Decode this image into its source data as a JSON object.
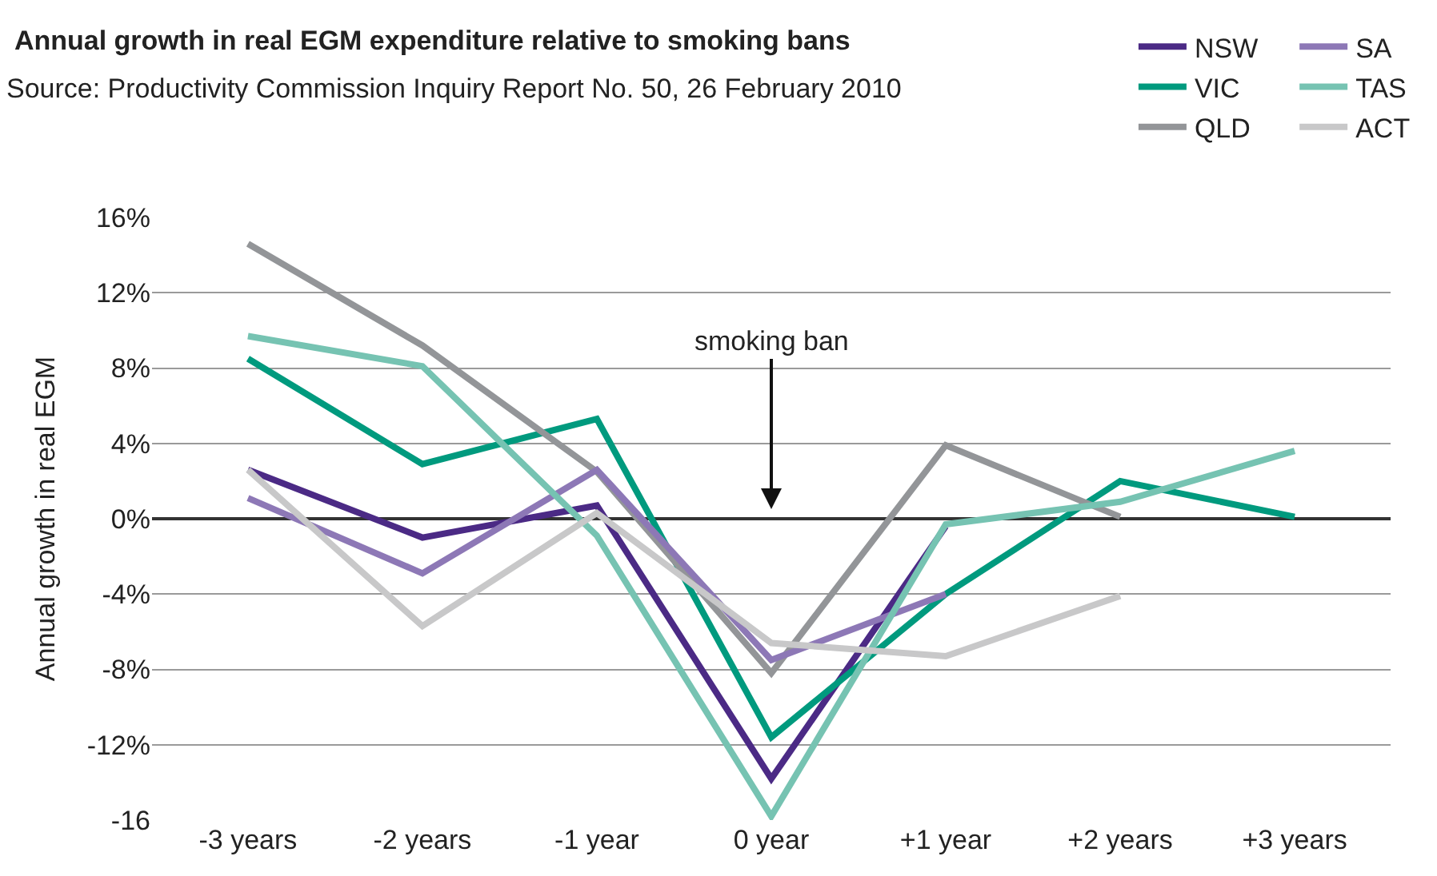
{
  "chart_data": {
    "type": "line",
    "title": "Annual growth in real EGM expenditure relative to smoking bans",
    "subtitle": "Source: Productivity Commission Inquiry Report No. 50, 26 February 2010",
    "ylabel": "Annual growth in real EGM",
    "categories": [
      "-3 years",
      "-2 years",
      "-1 year",
      "0 year",
      "+1 year",
      "+2 years",
      "+3 years"
    ],
    "series": [
      {
        "name": "NSW",
        "color": "#4b2a85",
        "values": [
          2.6,
          -1.0,
          0.7,
          -13.8,
          -0.4,
          null,
          null
        ]
      },
      {
        "name": "VIC",
        "color": "#009a7e",
        "values": [
          8.5,
          2.9,
          5.3,
          -11.6,
          -4.0,
          2.0,
          0.1
        ]
      },
      {
        "name": "QLD",
        "color": "#939598",
        "values": [
          14.6,
          9.2,
          2.5,
          -8.2,
          3.9,
          0.1,
          null
        ]
      },
      {
        "name": "SA",
        "color": "#8d78b6",
        "values": [
          1.1,
          -2.9,
          2.6,
          -7.5,
          -4.0,
          null,
          null
        ]
      },
      {
        "name": "TAS",
        "color": "#76c3b2",
        "values": [
          9.7,
          8.1,
          -0.9,
          -15.8,
          -0.3,
          0.9,
          3.6
        ]
      },
      {
        "name": "ACT",
        "color": "#c8c8c9",
        "values": [
          2.6,
          -5.7,
          0.3,
          -6.6,
          -7.3,
          -4.1,
          null
        ]
      }
    ],
    "ylim": [
      -16,
      16
    ],
    "yticks": [
      {
        "value": -16,
        "label": "-16"
      },
      {
        "value": -12,
        "label": "-12%"
      },
      {
        "value": -8,
        "label": "-8%"
      },
      {
        "value": -4,
        "label": "-4%"
      },
      {
        "value": 0,
        "label": "0%"
      },
      {
        "value": 4,
        "label": "4%"
      },
      {
        "value": 8,
        "label": "8%"
      },
      {
        "value": 12,
        "label": "12%"
      },
      {
        "value": 16,
        "label": "16%"
      }
    ],
    "annotations": [
      "smoking ban"
    ],
    "grid": "y",
    "legend": "top right",
    "marker": "none",
    "line_style": "solid"
  }
}
